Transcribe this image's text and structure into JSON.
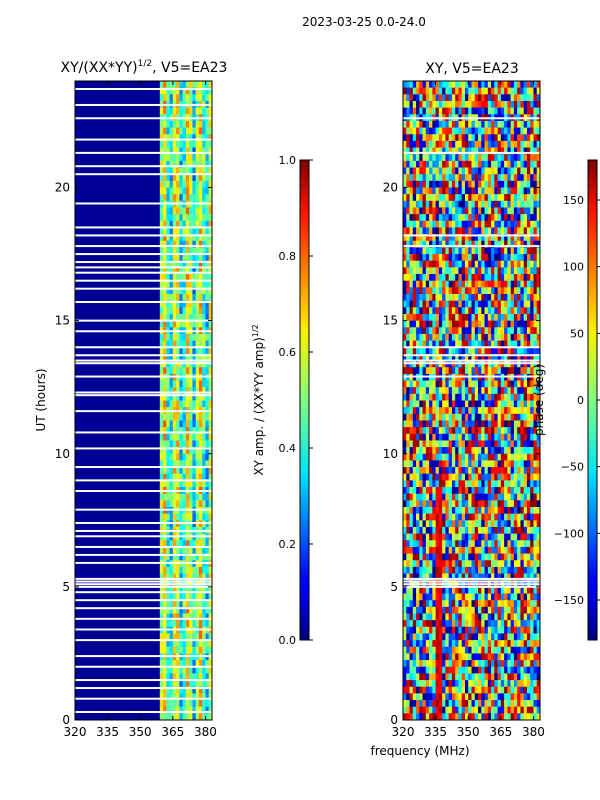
{
  "suptitle": "2023-03-25 0.0-24.0",
  "xlabel": "frequency (MHz)",
  "ylabel": "UT (hours)",
  "chart_data": [
    {
      "type": "heatmap",
      "title": "XY/(XX*YY)",
      "title_sup": "1/2",
      "title_tail": ", V5=EA23",
      "quantity": "normalized XY amplitude",
      "x": {
        "min": 320,
        "max": 383,
        "ticks": [
          "320",
          "335",
          "350",
          "365",
          "380"
        ],
        "tick_values": [
          320,
          335,
          350,
          365,
          380
        ],
        "label": "frequency (MHz)"
      },
      "y": {
        "min": 0,
        "max": 24,
        "ticks": [
          "0",
          "5",
          "10",
          "15",
          "20"
        ],
        "tick_values": [
          0,
          5,
          10,
          15,
          20
        ],
        "label": "UT (hours)"
      },
      "band_low": {
        "freq_range": [
          320,
          360
        ],
        "typical_value": 0.02
      },
      "band_high": {
        "freq_range": [
          360,
          383
        ],
        "typical_value": 0.4,
        "range": [
          0.2,
          0.8
        ]
      },
      "flagged_hours": [
        0.3,
        0.8,
        1.2,
        1.5,
        2.0,
        2.4,
        3.0,
        3.4,
        3.8,
        4.2,
        4.5,
        4.8,
        5.0,
        5.1,
        5.2,
        5.3,
        5.9,
        6.2,
        6.5,
        6.9,
        7.1,
        7.4,
        7.9,
        8.6,
        9.0,
        9.5,
        10.2,
        10.8,
        11.6,
        12.2,
        12.3,
        12.9,
        13.4,
        13.5,
        13.7,
        14.0,
        14.6,
        15.0,
        15.7,
        16.2,
        16.5,
        16.8,
        17.0,
        17.2,
        17.5,
        17.8,
        18.2,
        18.5,
        19.4,
        20.5,
        20.8,
        21.3,
        21.8,
        22.6,
        23.1,
        23.7
      ],
      "colorbar": {
        "label": "XY amp. / (XX*YY amp)",
        "label_sup": "1/2",
        "min": 0.0,
        "max": 1.0,
        "ticks": [
          "0.0",
          "0.2",
          "0.4",
          "0.6",
          "0.8",
          "1.0"
        ],
        "tick_values": [
          0.0,
          0.2,
          0.4,
          0.6,
          0.8,
          1.0
        ],
        "colormap": "jet"
      }
    },
    {
      "type": "heatmap",
      "title": "XY, V5=EA23",
      "quantity": "XY phase (deg)",
      "x": {
        "min": 320,
        "max": 383,
        "ticks": [
          "320",
          "335",
          "350",
          "365",
          "380"
        ],
        "tick_values": [
          320,
          335,
          350,
          365,
          380
        ],
        "label": "frequency (MHz)"
      },
      "y": {
        "min": 0,
        "max": 24,
        "ticks": [
          "0",
          "5",
          "10",
          "15",
          "20"
        ],
        "tick_values": [
          0,
          5,
          10,
          15,
          20
        ],
        "label": "UT (hours)"
      },
      "value_range": [
        -180,
        180
      ],
      "flagged_hours": [
        5.0,
        5.1,
        5.2,
        5.3,
        12.9,
        13.4,
        13.5,
        13.7,
        14.0,
        17.8,
        18.2,
        21.3,
        22.6
      ],
      "colorbar": {
        "label": "phase (deg)",
        "min": -180,
        "max": 180,
        "ticks": [
          "−150",
          "−100",
          "−50",
          "0",
          "50",
          "100",
          "150"
        ],
        "tick_values": [
          -150,
          -100,
          -50,
          0,
          50,
          100,
          150
        ],
        "colormap": "jet"
      }
    }
  ]
}
